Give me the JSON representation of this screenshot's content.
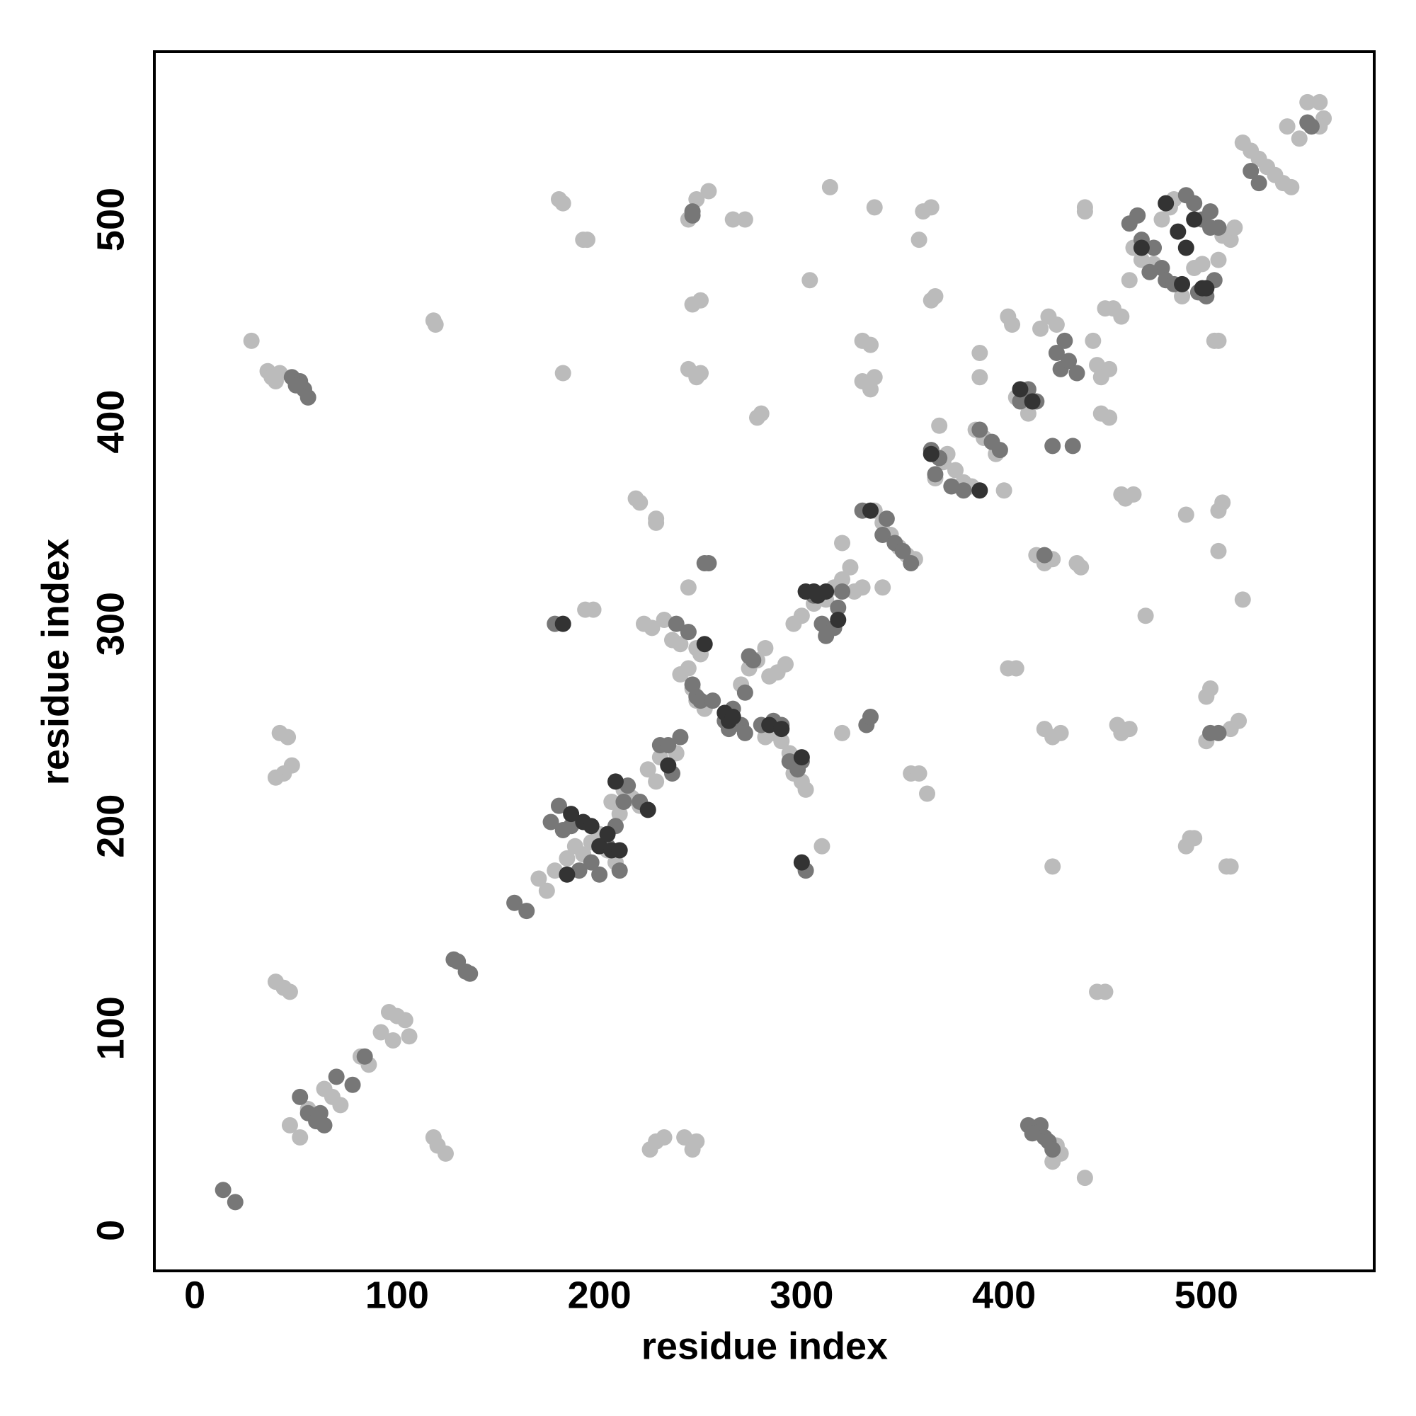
{
  "chart_data": {
    "type": "scatter",
    "xlabel": "residue index",
    "ylabel": "residue index",
    "xlim": [
      -20,
      583
    ],
    "ylim": [
      -20,
      583
    ],
    "xticks": [
      0,
      100,
      200,
      300,
      400,
      500
    ],
    "yticks": [
      0,
      100,
      200,
      300,
      400,
      500
    ],
    "series": [
      {
        "color": "#bbbbbb",
        "x": [
          28,
          36,
          38,
          40,
          42,
          44,
          40,
          42,
          46,
          48,
          40,
          44,
          47,
          47,
          52,
          56,
          60,
          64,
          68,
          72,
          82,
          86,
          92,
          96,
          100,
          104,
          106,
          98,
          118,
          120,
          124,
          118,
          119,
          180,
          182,
          182,
          192,
          194,
          193,
          197,
          170,
          174,
          178,
          184,
          188,
          192,
          196,
          200,
          204,
          208,
          206,
          210,
          212,
          216,
          220,
          224,
          228,
          230,
          234,
          238,
          225,
          228,
          232,
          242,
          246,
          248,
          218,
          220,
          228,
          228,
          222,
          226,
          232,
          236,
          240,
          244,
          248,
          250,
          240,
          244,
          246,
          248,
          252,
          256,
          244,
          244,
          248,
          250,
          246,
          250,
          244,
          248,
          254,
          266,
          272,
          270,
          274,
          278,
          282,
          284,
          288,
          292,
          278,
          280,
          282,
          286,
          290,
          294,
          296,
          300,
          302,
          296,
          300,
          306,
          304,
          310,
          314,
          306,
          312,
          316,
          320,
          324,
          326,
          330,
          320,
          320,
          330,
          334,
          330,
          334,
          336,
          336,
          340,
          336,
          340,
          344,
          348,
          352,
          356,
          354,
          358,
          362,
          360,
          364,
          358,
          364,
          366,
          366,
          370,
          372,
          376,
          380,
          384,
          368,
          386,
          390,
          396,
          388,
          388,
          400,
          402,
          406,
          402,
          404,
          406,
          412,
          416,
          420,
          424,
          424,
          420,
          424,
          428,
          418,
          422,
          426,
          424,
          428,
          426,
          440,
          436,
          438,
          440,
          440,
          444,
          446,
          448,
          452,
          448,
          452,
          450,
          454,
          446,
          450,
          456,
          458,
          462,
          458,
          460,
          464,
          458,
          462,
          464,
          468,
          470,
          474,
          478,
          482,
          484,
          488,
          490,
          492,
          490,
          494,
          494,
          498,
          500,
          502,
          500,
          504,
          506,
          506,
          508,
          506,
          506,
          508,
          512,
          514,
          510,
          512,
          512,
          516,
          518,
          518,
          522,
          526,
          530,
          534,
          538,
          542,
          540,
          546,
          550,
          556,
          558,
          556
        ],
        "y": [
          440,
          425,
          422,
          420,
          424,
          226,
          224,
          246,
          244,
          230,
          123,
          120,
          118,
          52,
          46,
          60,
          56,
          70,
          66,
          62,
          86,
          82,
          98,
          108,
          106,
          104,
          96,
          94,
          46,
          42,
          38,
          450,
          448,
          510,
          508,
          424,
          490,
          490,
          307,
          307,
          174,
          168,
          178,
          184,
          190,
          186,
          192,
          196,
          188,
          182,
          212,
          206,
          218,
          214,
          210,
          228,
          222,
          234,
          230,
          236,
          40,
          44,
          46,
          46,
          40,
          44,
          362,
          360,
          352,
          350,
          300,
          298,
          302,
          292,
          290,
          296,
          288,
          285,
          275,
          278,
          268,
          262,
          258,
          262,
          318,
          426,
          422,
          424,
          458,
          460,
          500,
          510,
          514,
          500,
          500,
          270,
          278,
          282,
          288,
          274,
          276,
          280,
          402,
          404,
          244,
          246,
          242,
          236,
          226,
          222,
          218,
          300,
          304,
          310,
          470,
          190,
          516,
          316,
          312,
          318,
          322,
          328,
          316,
          318,
          246,
          340,
          440,
          438,
          420,
          416,
          422,
          506,
          318,
          356,
          350,
          344,
          338,
          334,
          332,
          226,
          226,
          216,
          504,
          506,
          490,
          460,
          462,
          372,
          380,
          384,
          376,
          370,
          368,
          398,
          396,
          392,
          384,
          434,
          422,
          366,
          278,
          278,
          452,
          448,
          412,
          404,
          334,
          330,
          332,
          180,
          248,
          244,
          246,
          446,
          452,
          448,
          34,
          38,
          42,
          26,
          330,
          328,
          506,
          504,
          440,
          428,
          422,
          426,
          404,
          402,
          456,
          456,
          118,
          118,
          250,
          246,
          248,
          364,
          362,
          364,
          452,
          470,
          486,
          480,
          304,
          478,
          500,
          506,
          510,
          462,
          354,
          194,
          190,
          194,
          476,
          478,
          264,
          268,
          242,
          440,
          440,
          356,
          360,
          336,
          480,
          492,
          490,
          496,
          180,
          180,
          248,
          252,
          312,
          538,
          534,
          530,
          526,
          522,
          518,
          516,
          546,
          540,
          558,
          558,
          550,
          546
        ]
      },
      {
        "color": "#777777",
        "x": [
          14,
          20,
          52,
          54,
          56,
          48,
          50,
          52,
          56,
          60,
          64,
          62,
          70,
          78,
          84,
          128,
          130,
          134,
          136,
          158,
          164,
          178,
          176,
          180,
          182,
          186,
          190,
          196,
          200,
          204,
          208,
          210,
          212,
          214,
          220,
          230,
          234,
          240,
          236,
          238,
          244,
          246,
          248,
          250,
          252,
          254,
          256,
          246,
          246,
          262,
          264,
          266,
          270,
          272,
          272,
          274,
          276,
          280,
          286,
          290,
          294,
          298,
          302,
          300,
          306,
          310,
          312,
          316,
          318,
          320,
          330,
          332,
          334,
          340,
          342,
          346,
          350,
          354,
          364,
          366,
          368,
          374,
          380,
          388,
          394,
          398,
          408,
          412,
          416,
          420,
          418,
          412,
          414,
          422,
          424,
          420,
          424,
          434,
          426,
          430,
          428,
          432,
          436,
          462,
          466,
          468,
          474,
          478,
          480,
          484,
          472,
          490,
          494,
          498,
          502,
          500,
          504,
          496,
          502,
          506,
          502,
          506,
          522,
          526,
          550,
          552
        ],
        "y": [
          20,
          14,
          420,
          416,
          412,
          422,
          418,
          66,
          58,
          54,
          52,
          58,
          76,
          72,
          86,
          134,
          133,
          128,
          127,
          162,
          158,
          300,
          202,
          210,
          198,
          200,
          178,
          182,
          176,
          190,
          200,
          178,
          212,
          220,
          212,
          240,
          240,
          244,
          226,
          300,
          296,
          270,
          264,
          262,
          330,
          330,
          262,
          504,
          502,
          252,
          248,
          258,
          250,
          246,
          266,
          284,
          282,
          250,
          252,
          250,
          232,
          228,
          178,
          232,
          314,
          300,
          294,
          298,
          308,
          316,
          356,
          250,
          254,
          344,
          352,
          340,
          336,
          330,
          386,
          374,
          382,
          368,
          366,
          396,
          390,
          386,
          410,
          416,
          410,
          46,
          52,
          52,
          48,
          44,
          40,
          334,
          388,
          388,
          434,
          440,
          426,
          430,
          424,
          498,
          502,
          490,
          486,
          476,
          470,
          468,
          474,
          512,
          508,
          500,
          496,
          462,
          470,
          464,
          504,
          496,
          246,
          246,
          524,
          518,
          548,
          546
        ]
      },
      {
        "color": "#333333",
        "x": [
          182,
          184,
          186,
          192,
          196,
          200,
          204,
          206,
          208,
          210,
          224,
          234,
          252,
          262,
          264,
          266,
          284,
          290,
          300,
          302,
          306,
          308,
          312,
          318,
          300,
          334,
          364,
          388,
          408,
          414,
          468,
          480,
          486,
          488,
          490,
          494,
          498,
          500
        ],
        "y": [
          300,
          176,
          206,
          202,
          200,
          190,
          196,
          188,
          222,
          188,
          208,
          230,
          290,
          256,
          252,
          254,
          250,
          248,
          182,
          316,
          316,
          314,
          316,
          302,
          234,
          356,
          384,
          366,
          416,
          410,
          486,
          508,
          494,
          468,
          486,
          500,
          466,
          466
        ]
      }
    ]
  }
}
